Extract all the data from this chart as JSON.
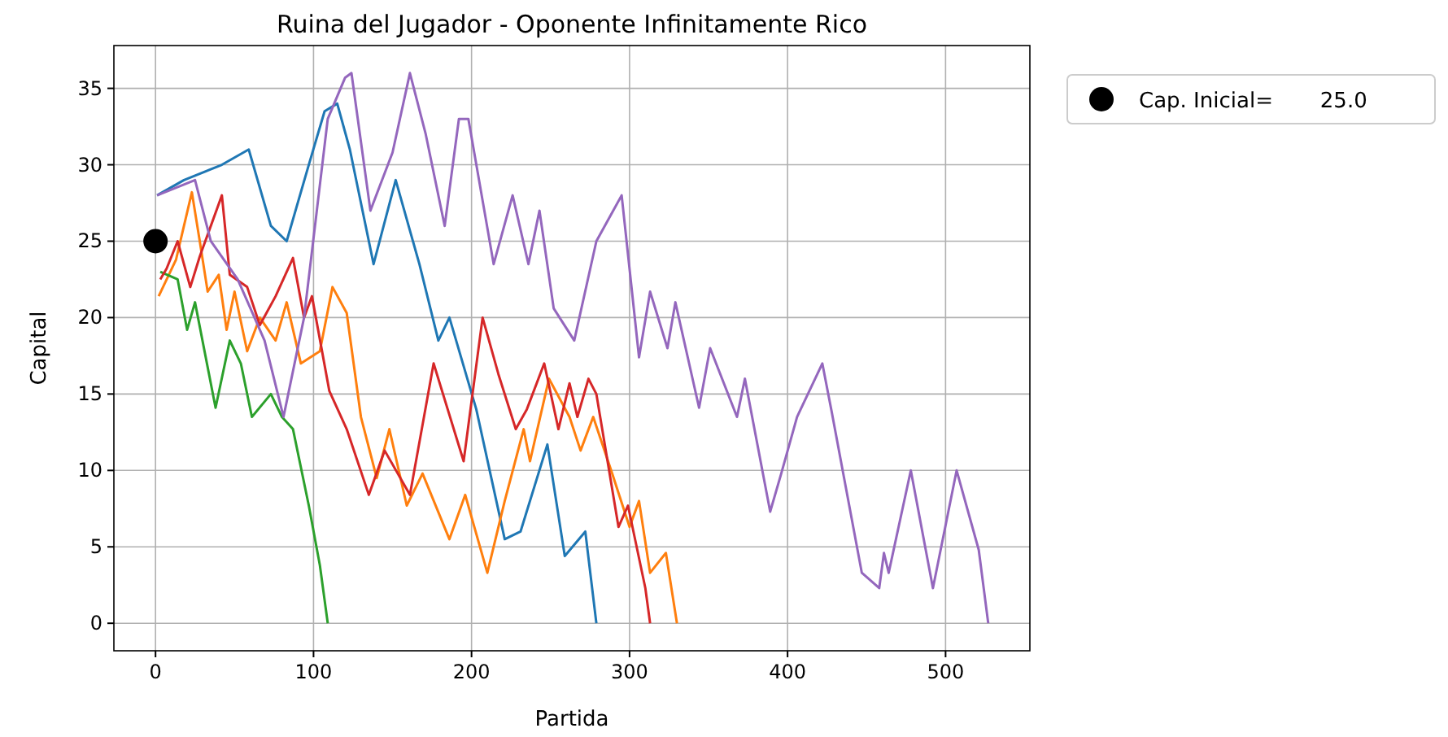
{
  "chart_data": {
    "type": "line",
    "title": "Ruina del Jugador - Oponente Infinitamente Rico",
    "xlabel": "Partida",
    "ylabel": "Capital",
    "xlim": [
      -26.35,
      553.35
    ],
    "ylim": [
      -1.8,
      37.8
    ],
    "xticks": [
      0,
      100,
      200,
      300,
      400,
      500
    ],
    "yticks": [
      0,
      5,
      10,
      15,
      20,
      25,
      30,
      35
    ],
    "grid": true,
    "legend": "top right",
    "series": [
      {
        "color": "#1f77b4",
        "x": [
          1,
          18,
          42,
          59,
          73,
          83,
          97,
          107,
          115,
          123,
          138,
          152,
          167,
          179,
          186,
          203,
          221,
          231,
          248,
          259,
          272,
          279
        ],
        "values": [
          28,
          29,
          30,
          31,
          26,
          25,
          30,
          33.5,
          34,
          31,
          23.5,
          29,
          23.5,
          18.5,
          20,
          14,
          5.5,
          6,
          11.7,
          4.4,
          6,
          0
        ]
      },
      {
        "color": "#ff7f0e",
        "x": [
          2,
          13,
          18,
          23,
          28,
          33,
          40,
          45,
          50,
          58,
          66,
          76,
          83,
          92,
          104,
          112,
          121,
          130,
          140,
          148,
          159,
          169,
          186,
          196,
          210,
          221,
          233,
          237,
          249,
          262,
          269,
          277,
          289,
          300,
          306,
          313,
          323,
          330
        ],
        "values": [
          21.4,
          23.8,
          26,
          28.2,
          25,
          21.7,
          22.8,
          19.2,
          21.7,
          17.8,
          20,
          18.5,
          21,
          17,
          17.8,
          22,
          20.3,
          13.5,
          9.5,
          12.7,
          7.7,
          9.8,
          5.5,
          8.4,
          3.3,
          8,
          12.7,
          10.6,
          16,
          13.5,
          11.3,
          13.5,
          9.8,
          6.3,
          8,
          3.3,
          4.6,
          0
        ]
      },
      {
        "color": "#2ca02c",
        "x": [
          3,
          14,
          20,
          25,
          38,
          47,
          54,
          61,
          73,
          80,
          87,
          97,
          104,
          109
        ],
        "values": [
          23,
          22.5,
          19.2,
          21,
          14.1,
          18.5,
          17,
          13.5,
          15,
          13.5,
          12.7,
          7.7,
          3.8,
          0
        ]
      },
      {
        "color": "#d62728",
        "x": [
          3,
          7,
          14,
          22,
          28,
          42,
          47,
          58,
          66,
          76,
          87,
          94,
          99,
          110,
          121,
          135,
          145,
          161,
          176,
          195,
          207,
          217,
          228,
          235,
          246,
          255,
          262,
          267,
          274,
          279,
          293,
          299,
          310,
          313
        ],
        "values": [
          22.5,
          23.2,
          25,
          22,
          24,
          28,
          22.8,
          22,
          19.5,
          21.4,
          23.9,
          20,
          21.4,
          15.2,
          12.7,
          8.4,
          11.3,
          8.4,
          17,
          10.6,
          20,
          16.3,
          12.7,
          14,
          17,
          12.7,
          15.7,
          13.5,
          16,
          15,
          6.3,
          7.7,
          2.3,
          0
        ]
      },
      {
        "color": "#9467bd",
        "x": [
          1,
          25,
          35,
          52,
          69,
          81,
          94,
          109,
          120,
          124,
          136,
          150,
          161,
          171,
          183,
          192,
          198,
          214,
          226,
          236,
          243,
          252,
          265,
          279,
          295,
          306,
          313,
          324,
          329,
          344,
          351,
          368,
          373,
          389,
          396,
          406,
          422,
          428,
          447,
          458,
          461,
          464,
          478,
          492,
          507,
          521,
          527
        ],
        "values": [
          28,
          29,
          25,
          22.5,
          18.5,
          13.5,
          20,
          33,
          35.7,
          36,
          27,
          30.8,
          36,
          32,
          26,
          33,
          33,
          23.5,
          28,
          23.5,
          27,
          20.6,
          18.5,
          25,
          28,
          17.4,
          21.7,
          18,
          21,
          14.1,
          18,
          13.5,
          16,
          7.3,
          9.8,
          13.5,
          17,
          13.8,
          3.3,
          2.3,
          4.6,
          3.3,
          10,
          2.3,
          10,
          4.8,
          0
        ]
      },
      {
        "type": "scatter",
        "name": "Cap. Inicial=       25.0",
        "color": "#000000",
        "marker": "circle",
        "x": [
          0
        ],
        "values": [
          25
        ]
      }
    ]
  }
}
